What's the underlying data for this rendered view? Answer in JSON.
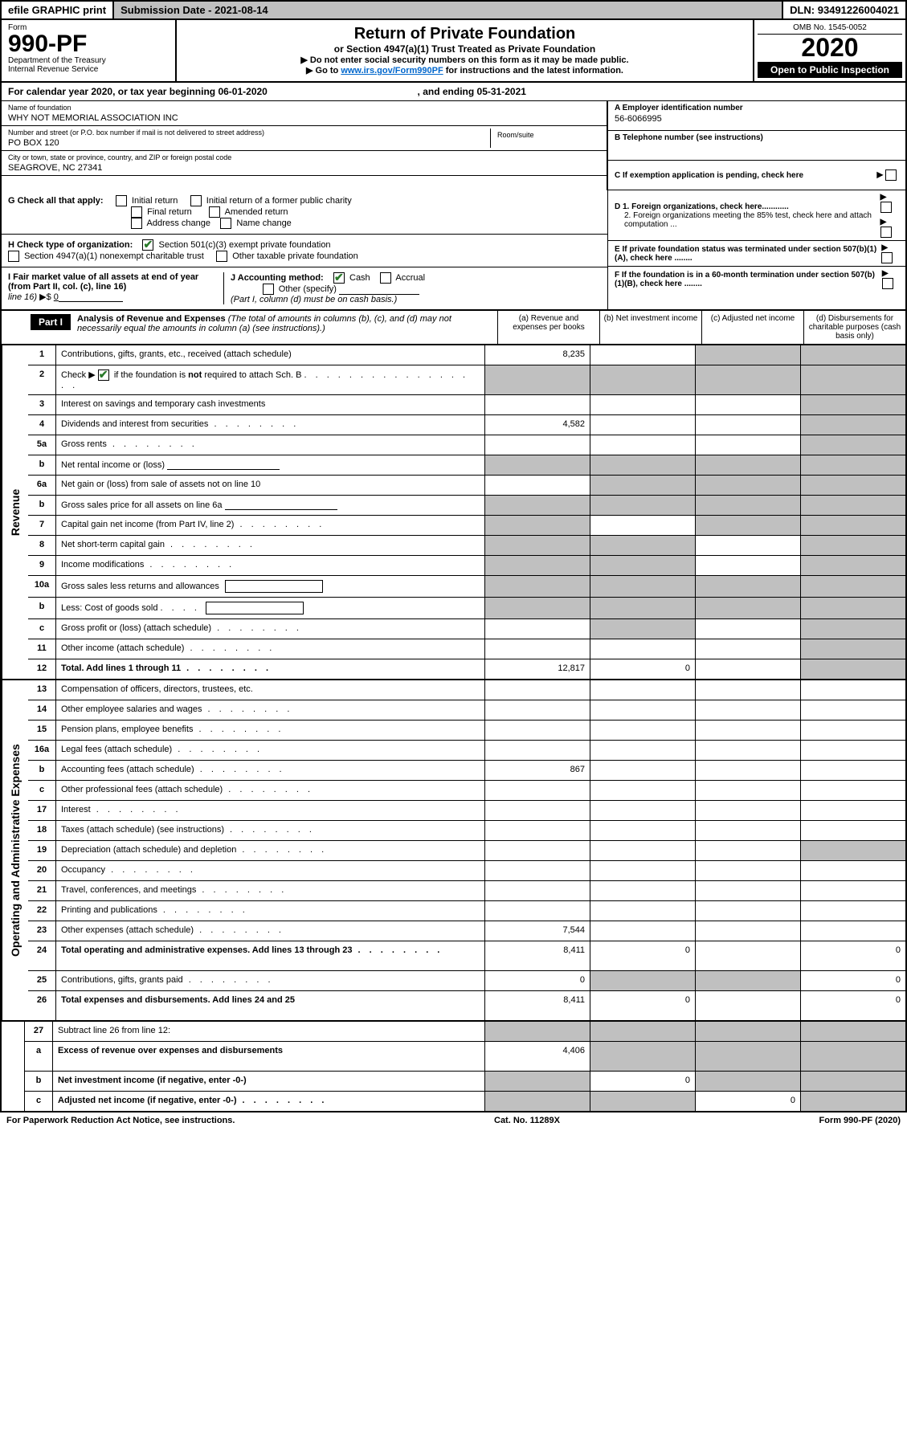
{
  "topbar": {
    "efile": "efile GRAPHIC print",
    "subdate_label": "Submission Date - ",
    "subdate": "2021-08-14",
    "dln_label": "DLN: ",
    "dln": "93491226004021"
  },
  "header": {
    "form_label": "Form",
    "form_number": "990-PF",
    "dept1": "Department of the Treasury",
    "dept2": "Internal Revenue Service",
    "title": "Return of Private Foundation",
    "subtitle": "or Section 4947(a)(1) Trust Treated as Private Foundation",
    "note1": "▶ Do not enter social security numbers on this form as it may be made public.",
    "note2_pre": "▶ Go to ",
    "note2_link": "www.irs.gov/Form990PF",
    "note2_post": " for instructions and the latest information.",
    "omb": "OMB No. 1545-0052",
    "year": "2020",
    "open_public": "Open to Public Inspection"
  },
  "calendar": {
    "text1": "For calendar year 2020, or tax year beginning ",
    "begin": "06-01-2020",
    "text2": ", and ending ",
    "end": "05-31-2021"
  },
  "entity": {
    "name_label": "Name of foundation",
    "name": "WHY NOT MEMORIAL ASSOCIATION INC",
    "addr_label": "Number and street (or P.O. box number if mail is not delivered to street address)",
    "addr": "PO BOX 120",
    "room_label": "Room/suite",
    "city_label": "City or town, state or province, country, and ZIP or foreign postal code",
    "city": "SEAGROVE, NC  27341",
    "ein_label": "A Employer identification number",
    "ein": "56-6066995",
    "phone_label": "B Telephone number (see instructions)",
    "c_label": "C If exemption application is pending, check here",
    "d1_label": "D 1. Foreign organizations, check here............",
    "d2_label": "2. Foreign organizations meeting the 85% test, check here and attach computation ...",
    "e_label": "E If private foundation status was terminated under section 507(b)(1)(A), check here ........",
    "f_label": "F If the foundation is in a 60-month termination under section 507(b)(1)(B), check here ........"
  },
  "gcheck": {
    "label": "G Check all that apply:",
    "initial_return": "Initial return",
    "initial_public": "Initial return of a former public charity",
    "final_return": "Final return",
    "amended": "Amended return",
    "address_change": "Address change",
    "name_change": "Name change"
  },
  "hcheck": {
    "label": "H Check type of organization:",
    "opt1": "Section 501(c)(3) exempt private foundation",
    "opt2": "Section 4947(a)(1) nonexempt charitable trust",
    "opt3": "Other taxable private foundation"
  },
  "ifmv": {
    "label": "I Fair market value of all assets at end of year (from Part II, col. (c), line 16)",
    "amount_prefix": "▶$ ",
    "amount": "0"
  },
  "jacct": {
    "label": "J Accounting method:",
    "cash": "Cash",
    "accrual": "Accrual",
    "other": "Other (specify)",
    "note": "(Part I, column (d) must be on cash basis.)"
  },
  "part1": {
    "label": "Part I",
    "title": "Analysis of Revenue and Expenses",
    "title_note": "(The total of amounts in columns (b), (c), and (d) may not necessarily equal the amounts in column (a) (see instructions).)",
    "col_a": "(a)   Revenue and expenses per books",
    "col_b": "(b)  Net investment income",
    "col_c": "(c)  Adjusted net income",
    "col_d": "(d)  Disbursements for charitable purposes (cash basis only)"
  },
  "sections": {
    "revenue": "Revenue",
    "expenses": "Operating and Administrative Expenses"
  },
  "rows": [
    {
      "num": "1",
      "desc": "Contributions, gifts, grants, etc., received (attach schedule)",
      "a": "8,235",
      "b": "",
      "c": "",
      "d": "",
      "shade_c": true,
      "shade_d": true
    },
    {
      "num": "2",
      "desc": "Check ▶ ☑ if the foundation is not required to attach Sch. B",
      "a": "",
      "b": "",
      "c": "",
      "d": "",
      "shade_all": true,
      "tall": true,
      "has_check": true
    },
    {
      "num": "3",
      "desc": "Interest on savings and temporary cash investments",
      "a": "",
      "b": "",
      "c": "",
      "d": "",
      "shade_d": true
    },
    {
      "num": "4",
      "desc": "Dividends and interest from securities",
      "a": "4,582",
      "b": "",
      "c": "",
      "d": "",
      "shade_d": true,
      "dots": true
    },
    {
      "num": "5a",
      "desc": "Gross rents",
      "a": "",
      "b": "",
      "c": "",
      "d": "",
      "shade_d": true,
      "dots": true
    },
    {
      "num": "b",
      "desc": "Net rental income or (loss)",
      "a": "",
      "b": "",
      "c": "",
      "d": "",
      "shade_all": true,
      "has_line": true
    },
    {
      "num": "6a",
      "desc": "Net gain or (loss) from sale of assets not on line 10",
      "a": "",
      "b": "",
      "c": "",
      "d": "",
      "shade_b": true,
      "shade_c": true,
      "shade_d": true
    },
    {
      "num": "b",
      "desc": "Gross sales price for all assets on line 6a",
      "a": "",
      "b": "",
      "c": "",
      "d": "",
      "shade_all": true,
      "has_line": true
    },
    {
      "num": "7",
      "desc": "Capital gain net income (from Part IV, line 2)",
      "a": "",
      "b": "",
      "c": "",
      "d": "",
      "shade_a": true,
      "shade_c": true,
      "shade_d": true,
      "dots": true
    },
    {
      "num": "8",
      "desc": "Net short-term capital gain",
      "a": "",
      "b": "",
      "c": "",
      "d": "",
      "shade_a": true,
      "shade_b": true,
      "shade_d": true,
      "dots": true
    },
    {
      "num": "9",
      "desc": "Income modifications",
      "a": "",
      "b": "",
      "c": "",
      "d": "",
      "shade_a": true,
      "shade_b": true,
      "shade_d": true,
      "dots": true
    },
    {
      "num": "10a",
      "desc": "Gross sales less returns and allowances",
      "a": "",
      "b": "",
      "c": "",
      "d": "",
      "shade_all": true,
      "has_box": true
    },
    {
      "num": "b",
      "desc": "Less: Cost of goods sold",
      "a": "",
      "b": "",
      "c": "",
      "d": "",
      "shade_all": true,
      "has_box": true,
      "dots": true
    },
    {
      "num": "c",
      "desc": "Gross profit or (loss) (attach schedule)",
      "a": "",
      "b": "",
      "c": "",
      "d": "",
      "shade_b": true,
      "shade_d": true,
      "dots": true
    },
    {
      "num": "11",
      "desc": "Other income (attach schedule)",
      "a": "",
      "b": "",
      "c": "",
      "d": "",
      "shade_d": true,
      "dots": true
    },
    {
      "num": "12",
      "desc": "Total. Add lines 1 through 11",
      "a": "12,817",
      "b": "0",
      "c": "",
      "d": "",
      "bold": true,
      "shade_d": true,
      "dots": true
    }
  ],
  "exp_rows": [
    {
      "num": "13",
      "desc": "Compensation of officers, directors, trustees, etc.",
      "a": "",
      "b": "",
      "c": "",
      "d": ""
    },
    {
      "num": "14",
      "desc": "Other employee salaries and wages",
      "a": "",
      "b": "",
      "c": "",
      "d": "",
      "dots": true
    },
    {
      "num": "15",
      "desc": "Pension plans, employee benefits",
      "a": "",
      "b": "",
      "c": "",
      "d": "",
      "dots": true
    },
    {
      "num": "16a",
      "desc": "Legal fees (attach schedule)",
      "a": "",
      "b": "",
      "c": "",
      "d": "",
      "dots": true
    },
    {
      "num": "b",
      "desc": "Accounting fees (attach schedule)",
      "a": "867",
      "b": "",
      "c": "",
      "d": "",
      "dots": true
    },
    {
      "num": "c",
      "desc": "Other professional fees (attach schedule)",
      "a": "",
      "b": "",
      "c": "",
      "d": "",
      "dots": true
    },
    {
      "num": "17",
      "desc": "Interest",
      "a": "",
      "b": "",
      "c": "",
      "d": "",
      "dots": true
    },
    {
      "num": "18",
      "desc": "Taxes (attach schedule) (see instructions)",
      "a": "",
      "b": "",
      "c": "",
      "d": "",
      "dots": true
    },
    {
      "num": "19",
      "desc": "Depreciation (attach schedule) and depletion",
      "a": "",
      "b": "",
      "c": "",
      "d": "",
      "shade_d": true,
      "dots": true
    },
    {
      "num": "20",
      "desc": "Occupancy",
      "a": "",
      "b": "",
      "c": "",
      "d": "",
      "dots": true
    },
    {
      "num": "21",
      "desc": "Travel, conferences, and meetings",
      "a": "",
      "b": "",
      "c": "",
      "d": "",
      "dots": true
    },
    {
      "num": "22",
      "desc": "Printing and publications",
      "a": "",
      "b": "",
      "c": "",
      "d": "",
      "dots": true
    },
    {
      "num": "23",
      "desc": "Other expenses (attach schedule)",
      "a": "7,544",
      "b": "",
      "c": "",
      "d": "",
      "dots": true
    },
    {
      "num": "24",
      "desc": "Total operating and administrative expenses. Add lines 13 through 23",
      "a": "8,411",
      "b": "0",
      "c": "",
      "d": "0",
      "bold": true,
      "tall": true,
      "dots": true
    },
    {
      "num": "25",
      "desc": "Contributions, gifts, grants paid",
      "a": "0",
      "b": "",
      "c": "",
      "d": "0",
      "shade_b": true,
      "shade_c": true,
      "dots": true
    },
    {
      "num": "26",
      "desc": "Total expenses and disbursements. Add lines 24 and 25",
      "a": "8,411",
      "b": "0",
      "c": "",
      "d": "0",
      "bold": true,
      "tall": true
    }
  ],
  "bottom_rows": [
    {
      "num": "27",
      "desc": "Subtract line 26 from line 12:",
      "a": "",
      "b": "",
      "c": "",
      "d": "",
      "shade_all": true
    },
    {
      "num": "a",
      "desc": "Excess of revenue over expenses and disbursements",
      "a": "4,406",
      "b": "",
      "c": "",
      "d": "",
      "bold": true,
      "shade_b": true,
      "shade_c": true,
      "shade_d": true,
      "tall": true
    },
    {
      "num": "b",
      "desc": "Net investment income (if negative, enter -0-)",
      "a": "",
      "b": "0",
      "c": "",
      "d": "",
      "bold": true,
      "shade_a": true,
      "shade_c": true,
      "shade_d": true
    },
    {
      "num": "c",
      "desc": "Adjusted net income (if negative, enter -0-)",
      "a": "",
      "b": "",
      "c": "0",
      "d": "",
      "bold": true,
      "shade_a": true,
      "shade_b": true,
      "shade_d": true,
      "dots": true
    }
  ],
  "footer": {
    "left": "For Paperwork Reduction Act Notice, see instructions.",
    "center": "Cat. No. 11289X",
    "right": "Form 990-PF (2020)"
  }
}
